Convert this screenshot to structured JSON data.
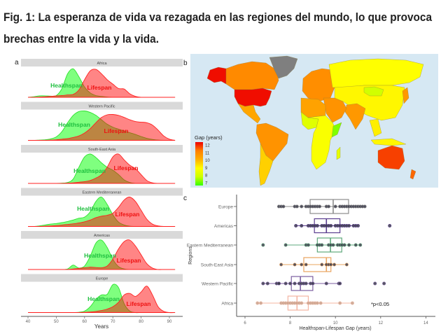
{
  "title": {
    "line1": "Fig. 1: La esperanza de vida va rezagada en las regiones del mundo, lo que provoca",
    "line2": "brechas entre la vida y la vida."
  },
  "panel_letters": {
    "a": "a",
    "b": "b",
    "c": "c"
  },
  "colors": {
    "healthspan": "#00ff00",
    "lifespan": "#ff0000",
    "strip": "#d9d9d9",
    "ocean": "#d6e8f3",
    "no_data": "#7f7f7f"
  },
  "panel_a": {
    "type": "area",
    "xlabel": "Years",
    "xticks": [
      40,
      50,
      60,
      70,
      80,
      90
    ],
    "ages": [
      40,
      42,
      44,
      46,
      48,
      50,
      52,
      54,
      56,
      58,
      60,
      62,
      64,
      66,
      68,
      70,
      72,
      74,
      76,
      78,
      80,
      82,
      84,
      86,
      88,
      90,
      92
    ],
    "series_labels": {
      "healthspan": "Healthspan",
      "lifespan": "Lifespan"
    },
    "regions": [
      {
        "name": "Africa",
        "healthspan": [
          0,
          0.02,
          0.05,
          0.05,
          0.04,
          0.06,
          0.3,
          0.8,
          0.97,
          0.7,
          0.35,
          0.15,
          0.06,
          0.03,
          0.01,
          0,
          0,
          0,
          0,
          0,
          0,
          0,
          0,
          0,
          0,
          0,
          0
        ],
        "lifespan": [
          0,
          0,
          0.01,
          0.02,
          0.03,
          0.05,
          0.06,
          0.08,
          0.1,
          0.25,
          0.6,
          0.9,
          0.95,
          0.8,
          0.6,
          0.45,
          0.3,
          0.28,
          0.12,
          0.03,
          0,
          0,
          0,
          0,
          0,
          0,
          0
        ]
      },
      {
        "name": "Western Pacific",
        "healthspan": [
          0,
          0,
          0.01,
          0.02,
          0.05,
          0.12,
          0.3,
          0.6,
          0.85,
          0.98,
          1,
          0.95,
          0.85,
          0.7,
          0.55,
          0.45,
          0.38,
          0.32,
          0.26,
          0.2,
          0.13,
          0.07,
          0.03,
          0.01,
          0,
          0,
          0
        ],
        "lifespan": [
          0,
          0,
          0,
          0,
          0.01,
          0.02,
          0.04,
          0.06,
          0.1,
          0.15,
          0.25,
          0.4,
          0.6,
          0.78,
          0.87,
          0.88,
          0.85,
          0.78,
          0.7,
          0.64,
          0.62,
          0.6,
          0.52,
          0.35,
          0.15,
          0.04,
          0
        ]
      },
      {
        "name": "South-East Asia",
        "healthspan": [
          0,
          0,
          0,
          0,
          0,
          0,
          0.01,
          0.03,
          0.15,
          0.55,
          0.9,
          1,
          0.88,
          0.7,
          0.55,
          0.45,
          0.3,
          0.12,
          0.03,
          0,
          0,
          0,
          0,
          0,
          0,
          0,
          0
        ],
        "lifespan": [
          0,
          0,
          0,
          0,
          0,
          0,
          0,
          0.01,
          0.02,
          0.04,
          0.06,
          0.1,
          0.18,
          0.3,
          0.55,
          0.9,
          1,
          0.8,
          0.62,
          0.5,
          0.3,
          0.1,
          0.02,
          0,
          0,
          0,
          0
        ]
      },
      {
        "name": "Eastern Mediterranean",
        "healthspan": [
          0,
          0,
          0.02,
          0.05,
          0.08,
          0.1,
          0.13,
          0.17,
          0.22,
          0.28,
          0.32,
          0.5,
          0.85,
          1,
          0.75,
          0.4,
          0.15,
          0.05,
          0.01,
          0,
          0,
          0,
          0,
          0,
          0,
          0,
          0
        ],
        "lifespan": [
          0,
          0,
          0,
          0.01,
          0.02,
          0.03,
          0.05,
          0.07,
          0.09,
          0.12,
          0.16,
          0.22,
          0.3,
          0.35,
          0.38,
          0.45,
          0.65,
          0.9,
          1,
          0.85,
          0.55,
          0.25,
          0.08,
          0.02,
          0,
          0,
          0
        ]
      },
      {
        "name": "Americas",
        "healthspan": [
          0,
          0,
          0,
          0,
          0,
          0,
          0,
          0.02,
          0.15,
          0.05,
          0.12,
          0.45,
          0.9,
          1,
          0.75,
          0.35,
          0.1,
          0.02,
          0,
          0,
          0,
          0,
          0,
          0,
          0,
          0,
          0
        ],
        "lifespan": [
          0,
          0,
          0,
          0,
          0,
          0,
          0,
          0,
          0.02,
          0.04,
          0.06,
          0.08,
          0.07,
          0.06,
          0.12,
          0.35,
          0.7,
          0.95,
          1,
          0.8,
          0.5,
          0.2,
          0.05,
          0,
          0,
          0,
          0
        ]
      },
      {
        "name": "Europe",
        "healthspan": [
          0,
          0,
          0,
          0,
          0,
          0,
          0,
          0,
          0,
          0.01,
          0.05,
          0.2,
          0.45,
          0.6,
          0.62,
          0.95,
          0.85,
          0.3,
          0.05,
          0,
          0,
          0,
          0,
          0,
          0,
          0,
          0
        ],
        "lifespan": [
          0,
          0,
          0,
          0,
          0,
          0,
          0,
          0,
          0,
          0,
          0.01,
          0.02,
          0.04,
          0.07,
          0.12,
          0.2,
          0.35,
          0.6,
          0.65,
          0.55,
          0.7,
          0.9,
          0.6,
          0.2,
          0.04,
          0,
          0
        ]
      }
    ]
  },
  "panel_b": {
    "legend_title": "Gap (years)",
    "legend_ticks": [
      12,
      11,
      10,
      9,
      8,
      7
    ],
    "color_scale": [
      {
        "value": 7,
        "color": "#33ff00"
      },
      {
        "value": 8,
        "color": "#ccff00"
      },
      {
        "value": 9,
        "color": "#ffff00"
      },
      {
        "value": 10,
        "color": "#ffb000"
      },
      {
        "value": 11,
        "color": "#ff8000"
      },
      {
        "value": 12,
        "color": "#ee0000"
      }
    ],
    "areas": [
      {
        "name": "alaska",
        "gap": 11.9
      },
      {
        "name": "canada",
        "gap": 10.8
      },
      {
        "name": "greenland",
        "gap": null
      },
      {
        "name": "usa",
        "gap": 11.9
      },
      {
        "name": "mexico",
        "gap": 10.2
      },
      {
        "name": "brazil",
        "gap": 10.6
      },
      {
        "name": "southern-cone",
        "gap": 9.6
      },
      {
        "name": "europe",
        "gap": 10.7
      },
      {
        "name": "russia",
        "gap": 9.0
      },
      {
        "name": "east-asia",
        "gap": 9.1
      },
      {
        "name": "mongolia",
        "gap": 8.1
      },
      {
        "name": "india",
        "gap": 10.5
      },
      {
        "name": "middle-east",
        "gap": 10.6
      },
      {
        "name": "north-africa",
        "gap": 10.3
      },
      {
        "name": "west-africa",
        "gap": 8.4
      },
      {
        "name": "sub-saharan-africa",
        "gap": 8.9
      },
      {
        "name": "somalia",
        "gap": 7.5
      },
      {
        "name": "madagascar",
        "gap": 8.5
      },
      {
        "name": "southeast-asia",
        "gap": 9.2
      },
      {
        "name": "indonesia",
        "gap": 9.1
      },
      {
        "name": "japan",
        "gap": 10.5
      },
      {
        "name": "australia",
        "gap": 11.5
      },
      {
        "name": "new-zealand",
        "gap": 11.2
      }
    ]
  },
  "chart_data": {
    "type": "box",
    "xlabel": "Healthspan-Lifespan Gap (years)",
    "ylabel": "Regions",
    "xlim": [
      5.6,
      14.4
    ],
    "xticks": [
      6,
      8,
      10,
      12,
      14
    ],
    "annotation": "*p<0.05",
    "categories": [
      "Europe",
      "Americas",
      "Eastern Mediterranean",
      "South-East Asia",
      "Western Pacific",
      "Africa"
    ],
    "boxes": [
      {
        "region": "Europe",
        "color": "#8c8c8c",
        "whisker_low": 7.5,
        "q1": 8.88,
        "median": 9.9,
        "q3": 10.58,
        "whisker_high": 11.3,
        "points": [
          7.5,
          7.6,
          7.7,
          8.2,
          8.3,
          8.5,
          8.7,
          8.8,
          8.9,
          9.0,
          9.1,
          9.2,
          9.3,
          9.6,
          9.7,
          10.0,
          10.2,
          10.3,
          10.4,
          10.5,
          10.6,
          10.7,
          10.8,
          10.9,
          11.0,
          11.1,
          11.2,
          11.3
        ]
      },
      {
        "region": "Americas",
        "color": "#5a3d8f",
        "whisker_low": 8.25,
        "q1": 9.07,
        "median": 9.6,
        "q3": 10.2,
        "whisker_high": 11.0,
        "points": [
          8.25,
          8.5,
          8.8,
          8.9,
          9.0,
          9.1,
          9.2,
          9.4,
          9.5,
          9.6,
          9.7,
          9.8,
          10.0,
          10.1,
          10.2,
          10.3,
          10.4,
          10.5,
          10.6,
          10.8,
          10.9,
          11.0,
          12.4
        ]
      },
      {
        "region": "Eastern Mediterranean",
        "color": "#5fa97c",
        "whisker_low": 7.8,
        "q1": 9.2,
        "median": 9.78,
        "q3": 10.28,
        "whisker_high": 11.1,
        "points": [
          6.8,
          7.8,
          8.7,
          8.8,
          9.2,
          9.3,
          9.4,
          9.7,
          9.8,
          9.9,
          10.1,
          10.2,
          10.3,
          10.4,
          10.6,
          10.9,
          11.1
        ]
      },
      {
        "region": "South-East Asia",
        "color": "#e9a45f",
        "whisker_low": 7.65,
        "q1": 8.6,
        "median": 9.6,
        "q3": 9.8,
        "whisker_high": 10.5,
        "points": [
          7.6,
          8.2,
          8.5,
          8.7,
          9.4,
          9.6,
          9.7,
          9.8,
          9.95,
          10.5
        ]
      },
      {
        "region": "Western Pacific",
        "color": "#7b5ea0",
        "whisker_low": 6.8,
        "q1": 8.05,
        "median": 8.45,
        "q3": 9.0,
        "whisker_high": 10.2,
        "points": [
          6.8,
          7.0,
          7.4,
          7.5,
          7.5,
          7.8,
          8.0,
          8.2,
          8.4,
          8.5,
          8.6,
          8.7,
          8.9,
          9.0,
          9.6,
          10.15,
          10.2,
          11.75,
          12.15
        ]
      },
      {
        "region": "Africa",
        "color": "#f4b4a2",
        "whisker_low": 6.55,
        "q1": 7.9,
        "median": 8.3,
        "q3": 8.8,
        "whisker_high": 10.75,
        "points": [
          6.55,
          6.7,
          7.6,
          7.7,
          7.8,
          7.9,
          8.0,
          8.1,
          8.2,
          8.3,
          8.4,
          8.5,
          8.8,
          8.9,
          9.0,
          9.1,
          9.2,
          9.35,
          10.2,
          10.75
        ]
      }
    ]
  }
}
